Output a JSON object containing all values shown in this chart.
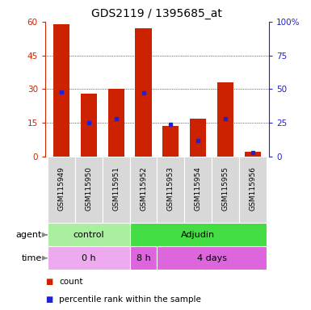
{
  "title": "GDS2119 / 1395685_at",
  "samples": [
    "GSM115949",
    "GSM115950",
    "GSM115951",
    "GSM115952",
    "GSM115953",
    "GSM115954",
    "GSM115955",
    "GSM115956"
  ],
  "counts": [
    59,
    28,
    30,
    57,
    13.5,
    17,
    33,
    2
  ],
  "percentile_ranks": [
    48,
    25,
    28,
    47,
    24,
    12,
    28,
    3
  ],
  "ylim_left": [
    0,
    60
  ],
  "ylim_right": [
    0,
    100
  ],
  "yticks_left": [
    0,
    15,
    30,
    45,
    60
  ],
  "yticks_right": [
    0,
    25,
    50,
    75,
    100
  ],
  "bar_color": "#cc2200",
  "dot_color": "#2222cc",
  "agent_groups": [
    {
      "label": "control",
      "start": 0,
      "end": 3,
      "color": "#aaeea0"
    },
    {
      "label": "Adjudin",
      "start": 3,
      "end": 8,
      "color": "#44dd44"
    }
  ],
  "time_groups": [
    {
      "label": "0 h",
      "start": 0,
      "end": 3,
      "color": "#eeaaee"
    },
    {
      "label": "8 h",
      "start": 3,
      "end": 4,
      "color": "#dd66dd"
    },
    {
      "label": "4 days",
      "start": 4,
      "end": 8,
      "color": "#dd66dd"
    }
  ],
  "legend_count_label": "count",
  "legend_pct_label": "percentile rank within the sample",
  "title_fontsize": 10,
  "axis_color_left": "#cc2200",
  "axis_color_right": "#2222cc",
  "grid_color": "black",
  "label_fontsize": 8,
  "tick_fontsize": 7.5,
  "sample_fontsize": 6.5
}
